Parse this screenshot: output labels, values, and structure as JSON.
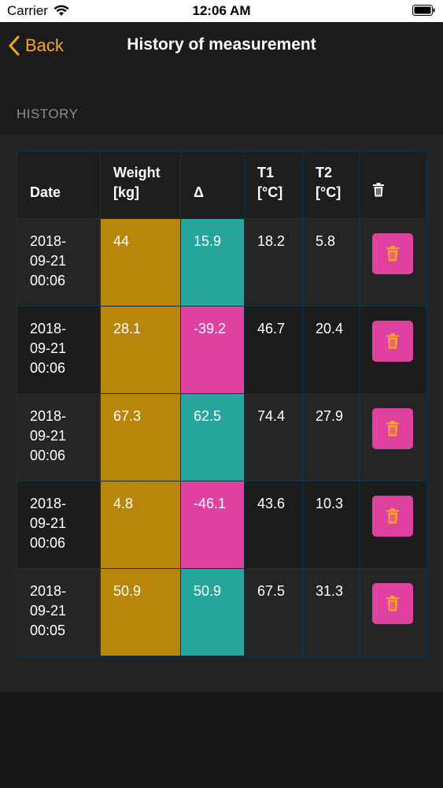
{
  "status_bar": {
    "carrier": "Carrier",
    "time": "12:06 AM"
  },
  "nav": {
    "back_label": "Back",
    "title": "History of measurement"
  },
  "section": {
    "header": "HISTORY"
  },
  "table": {
    "headers": {
      "date": "Date",
      "weight_line1": "Weight",
      "weight_line2": "[kg]",
      "delta": "Δ",
      "t1_line1": "T1",
      "t1_line2": "[°C]",
      "t2_line1": "T2",
      "t2_line2": "[°C]"
    },
    "rows": [
      {
        "date1": "2018-",
        "date2": "09-21",
        "date3": "00:06",
        "weight": "44",
        "delta": "15.9",
        "t1": "18.2",
        "t2": "5.8"
      },
      {
        "date1": "2018-",
        "date2": "09-21",
        "date3": "00:06",
        "weight": "28.1",
        "delta": "-39.2",
        "t1": "46.7",
        "t2": "20.4"
      },
      {
        "date1": "2018-",
        "date2": "09-21",
        "date3": "00:06",
        "weight": "67.3",
        "delta": "62.5",
        "t1": "74.4",
        "t2": "27.9"
      },
      {
        "date1": "2018-",
        "date2": "09-21",
        "date3": "00:06",
        "weight": "4.8",
        "delta": "-46.1",
        "t1": "43.6",
        "t2": "10.3"
      },
      {
        "date1": "2018-",
        "date2": "09-21",
        "date3": "00:05",
        "weight": "50.9",
        "delta": "50.9",
        "t1": "67.5",
        "t2": "31.3"
      }
    ]
  },
  "colors": {
    "accent": "#f5a623",
    "weight": "#b8860b",
    "delta_positive": "#26a69a",
    "delta_negative": "#e040a0",
    "delete_button": "#e040a0"
  },
  "icons": {
    "header_delete": "trash-icon",
    "row_delete": "trash-icon",
    "back": "chevron-left-icon"
  }
}
